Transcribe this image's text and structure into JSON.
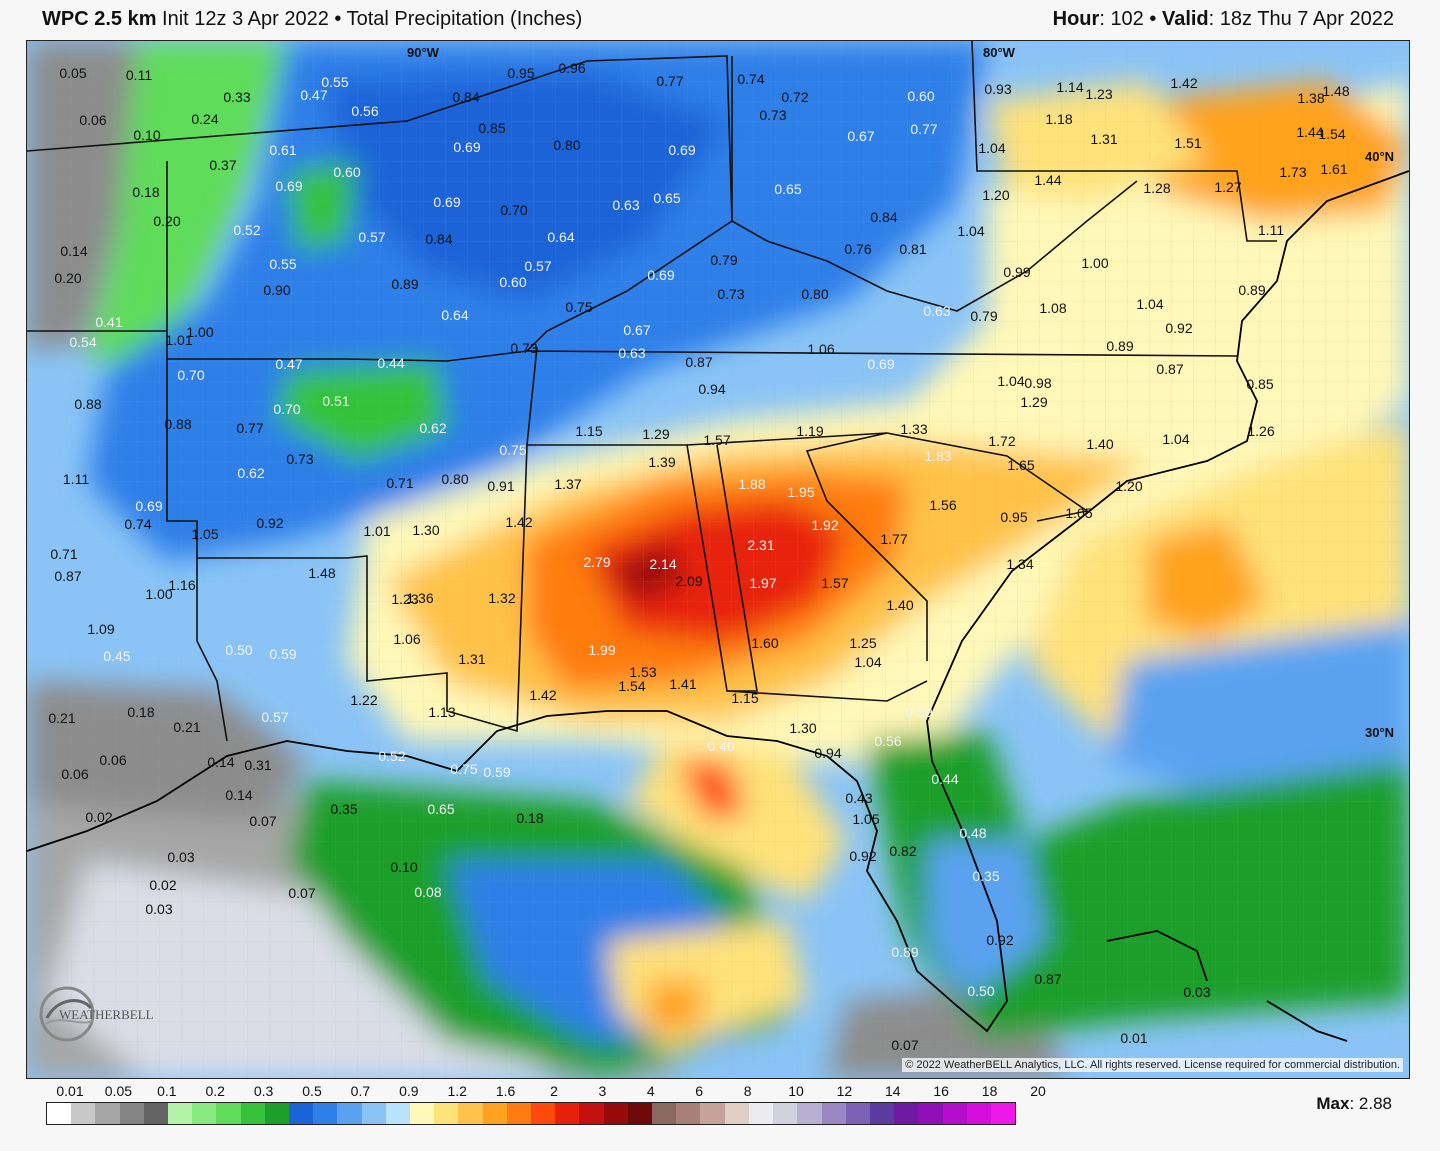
{
  "header": {
    "model": "WPC 2.5 km",
    "init": "Init 12z 3 Apr 2022",
    "field": "Total Precipitation (Inches)",
    "hour_label": "Hour",
    "hour_value": "102",
    "valid_label": "Valid",
    "valid_value": "18z Thu 7 Apr 2022"
  },
  "map_labels": {
    "lon_90": "90°W",
    "lon_80": "80°W",
    "lat_40": "40°N",
    "lat_30": "30°N"
  },
  "copyright": "© 2022 WeatherBELL Analytics, LLC. All rights reserved. License required for commercial distribution.",
  "logo_text": "WEATHERBELL",
  "legend": {
    "ticks": [
      "0.01",
      "0.05",
      "0.1",
      "0.2",
      "0.3",
      "0.5",
      "0.7",
      "0.9",
      "1.2",
      "1.6",
      "2",
      "3",
      "4",
      "6",
      "8",
      "10",
      "12",
      "14",
      "16",
      "18",
      "20"
    ],
    "colors": [
      "#ffffff",
      "#c8c8c8",
      "#a6a6a6",
      "#858585",
      "#646464",
      "#b2f3a7",
      "#88ea7e",
      "#5fdc5a",
      "#36c23b",
      "#1e9f2a",
      "#1b64d8",
      "#2f7fe8",
      "#5aa2f0",
      "#8ac4f6",
      "#b8e3fa",
      "#fff8b8",
      "#ffe27a",
      "#ffc24a",
      "#ffa21f",
      "#ff7b10",
      "#ff4a0c",
      "#e7200b",
      "#c4100e",
      "#98090a",
      "#6e0a0a",
      "#8a6a60",
      "#a88078",
      "#c7a29a",
      "#e1cfc6",
      "#ececf0",
      "#d2d2de",
      "#b8b0d2",
      "#9a88c4",
      "#7b62b6",
      "#5b3c9e",
      "#6e1aa0",
      "#9010b8",
      "#b40ccc",
      "#d40cdc",
      "#ee18e8"
    ]
  },
  "max_label": "Max",
  "max_value": "2.88",
  "values": [
    [
      "0.05",
      72,
      72,
      0
    ],
    [
      "0.11",
      138,
      74,
      0
    ],
    [
      "0.06",
      92,
      119,
      0
    ],
    [
      "0.10",
      146,
      134,
      0
    ],
    [
      "0.33",
      236,
      96,
      0
    ],
    [
      "0.24",
      204,
      118,
      0
    ],
    [
      "0.55",
      334,
      81,
      1
    ],
    [
      "0.47",
      313,
      94,
      1
    ],
    [
      "0.56",
      364,
      110,
      1
    ],
    [
      "0.37",
      222,
      164,
      0
    ],
    [
      "0.61",
      282,
      149,
      1
    ],
    [
      "0.60",
      346,
      171,
      1
    ],
    [
      "0.18",
      145,
      191,
      0
    ],
    [
      "0.69",
      288,
      185,
      1
    ],
    [
      "0.20",
      166,
      220,
      0
    ],
    [
      "0.52",
      246,
      229,
      1
    ],
    [
      "0.57",
      371,
      236,
      1
    ],
    [
      "0.14",
      73,
      250,
      0
    ],
    [
      "0.55",
      282,
      263,
      1
    ],
    [
      "0.20",
      67,
      277,
      0
    ],
    [
      "0.90",
      276,
      289,
      0
    ],
    [
      "0.89",
      404,
      283,
      0
    ],
    [
      "0.41",
      108,
      321,
      1
    ],
    [
      "0.54",
      82,
      341,
      1
    ],
    [
      "1.01",
      178,
      339,
      0
    ],
    [
      "1.00",
      199,
      331,
      0
    ],
    [
      "0.70",
      190,
      374,
      1
    ],
    [
      "0.47",
      288,
      363,
      1
    ],
    [
      "0.44",
      390,
      362,
      1
    ],
    [
      "0.88",
      87,
      403,
      0
    ],
    [
      "0.70",
      286,
      408,
      1
    ],
    [
      "0.51",
      335,
      400,
      1
    ],
    [
      "0.88",
      177,
      423,
      0
    ],
    [
      "0.77",
      249,
      427,
      0
    ],
    [
      "0.73",
      299,
      458,
      0
    ],
    [
      "0.62",
      250,
      472,
      1
    ],
    [
      "1.11",
      75,
      478,
      0
    ],
    [
      "0.69",
      148,
      505,
      1
    ],
    [
      "0.74",
      137,
      523,
      0
    ],
    [
      "0.92",
      269,
      522,
      0
    ],
    [
      "0.71",
      63,
      553,
      0
    ],
    [
      "0.87",
      67,
      575,
      0
    ],
    [
      "1.00",
      158,
      593,
      0
    ],
    [
      "1.16",
      181,
      584,
      0
    ],
    [
      "1.09",
      100,
      628,
      0
    ],
    [
      "0.45",
      116,
      655,
      1
    ],
    [
      "0.50",
      238,
      649,
      1
    ],
    [
      "0.59",
      282,
      653,
      1
    ],
    [
      "0.21",
      61,
      717,
      0
    ],
    [
      "0.18",
      140,
      711,
      0
    ],
    [
      "0.21",
      186,
      726,
      0
    ],
    [
      "0.57",
      274,
      716,
      1
    ],
    [
      "0.06",
      112,
      759,
      0
    ],
    [
      "0.06",
      74,
      773,
      0
    ],
    [
      "0.14",
      220,
      761,
      0
    ],
    [
      "0.31",
      257,
      764,
      0
    ],
    [
      "0.14",
      238,
      794,
      0
    ],
    [
      "0.07",
      262,
      820,
      0
    ],
    [
      "0.35",
      343,
      808,
      0
    ],
    [
      "0.02",
      98,
      816,
      0
    ],
    [
      "0.03",
      180,
      856,
      0
    ],
    [
      "0.02",
      162,
      884,
      0
    ],
    [
      "0.03",
      158,
      908,
      0
    ],
    [
      "0.07",
      301,
      892,
      0
    ],
    [
      "0.10",
      403,
      866,
      0
    ],
    [
      "0.08",
      427,
      891,
      1
    ],
    [
      "0.95",
      520,
      72,
      0
    ],
    [
      "0.96",
      571,
      67,
      0
    ],
    [
      "0.84",
      465,
      96,
      0
    ],
    [
      "0.85",
      491,
      127,
      0
    ],
    [
      "0.69",
      466,
      146,
      1
    ],
    [
      "0.80",
      566,
      144,
      0
    ],
    [
      "0.77",
      669,
      80,
      0
    ],
    [
      "0.74",
      750,
      78,
      0
    ],
    [
      "0.72",
      794,
      96,
      0
    ],
    [
      "0.73",
      772,
      114,
      0
    ],
    [
      "0.60",
      920,
      95,
      1
    ],
    [
      "0.77",
      923,
      128,
      1
    ],
    [
      "0.67",
      860,
      135,
      1
    ],
    [
      "0.69",
      681,
      149,
      1
    ],
    [
      "0.69",
      446,
      201,
      1
    ],
    [
      "0.70",
      513,
      209,
      0
    ],
    [
      "0.63",
      625,
      204,
      1
    ],
    [
      "0.65",
      666,
      197,
      1
    ],
    [
      "0.65",
      787,
      188,
      1
    ],
    [
      "0.84",
      438,
      238,
      0
    ],
    [
      "0.64",
      560,
      236,
      1
    ],
    [
      "0.57",
      537,
      265,
      1
    ],
    [
      "0.60",
      512,
      281,
      1
    ],
    [
      "0.69",
      660,
      274,
      1
    ],
    [
      "0.79",
      723,
      259,
      0
    ],
    [
      "0.73",
      730,
      293,
      0
    ],
    [
      "0.80",
      814,
      293,
      0
    ],
    [
      "0.84",
      883,
      216,
      0
    ],
    [
      "0.76",
      857,
      248,
      0
    ],
    [
      "0.81",
      912,
      248,
      0
    ],
    [
      "0.75",
      578,
      306,
      0
    ],
    [
      "0.64",
      454,
      314,
      1
    ],
    [
      "0.67",
      636,
      329,
      1
    ],
    [
      "0.73",
      523,
      347,
      0
    ],
    [
      "0.63",
      631,
      352,
      1
    ],
    [
      "0.87",
      698,
      361,
      0
    ],
    [
      "0.94",
      711,
      388,
      0
    ],
    [
      "1.06",
      820,
      348,
      0
    ],
    [
      "0.69",
      880,
      363,
      1
    ],
    [
      "0.62",
      432,
      427,
      1
    ],
    [
      "0.75",
      512,
      449,
      1
    ],
    [
      "0.71",
      399,
      482,
      0
    ],
    [
      "0.80",
      454,
      478,
      0
    ],
    [
      "0.91",
      500,
      485,
      0
    ],
    [
      "1.15",
      588,
      430,
      0
    ],
    [
      "1.29",
      655,
      433,
      0
    ],
    [
      "1.57",
      716,
      439,
      0
    ],
    [
      "1.19",
      809,
      430,
      0
    ],
    [
      "1.33",
      913,
      428,
      0
    ],
    [
      "1.37",
      567,
      483,
      0
    ],
    [
      "1.39",
      661,
      461,
      0
    ],
    [
      "1.88",
      751,
      483,
      1
    ],
    [
      "1.95",
      800,
      491,
      1
    ],
    [
      "1.83",
      937,
      455,
      1
    ],
    [
      "1.42",
      518,
      521,
      0
    ],
    [
      "1.30",
      425,
      529,
      0
    ],
    [
      "1.01",
      376,
      530,
      0
    ],
    [
      "1.05",
      204,
      533,
      0
    ],
    [
      "1.48",
      321,
      572,
      0
    ],
    [
      "2.79",
      596,
      561,
      1
    ],
    [
      "2.14",
      662,
      563,
      1
    ],
    [
      "2.31",
      760,
      544,
      1
    ],
    [
      "1.92",
      824,
      524,
      1
    ],
    [
      "1.56",
      942,
      504,
      0
    ],
    [
      "1.77",
      893,
      538,
      0
    ],
    [
      "2.09",
      688,
      580,
      0
    ],
    [
      "1.97",
      762,
      582,
      1
    ],
    [
      "1.57",
      834,
      582,
      0
    ],
    [
      "1.23",
      404,
      598,
      0
    ],
    [
      "1.36",
      419,
      597,
      0
    ],
    [
      "1.32",
      501,
      597,
      0
    ],
    [
      "1.40",
      899,
      604,
      0
    ],
    [
      "1.06",
      406,
      638,
      0
    ],
    [
      "1.60",
      764,
      642,
      0
    ],
    [
      "1.25",
      862,
      642,
      0
    ],
    [
      "1.31",
      471,
      658,
      0
    ],
    [
      "1.99",
      601,
      649,
      1
    ],
    [
      "1.04",
      867,
      661,
      0
    ],
    [
      "1.53",
      642,
      671,
      0
    ],
    [
      "1.54",
      631,
      685,
      0
    ],
    [
      "1.41",
      682,
      683,
      0
    ],
    [
      "1.22",
      363,
      699,
      0
    ],
    [
      "1.13",
      441,
      711,
      0
    ],
    [
      "1.42",
      542,
      694,
      0
    ],
    [
      "1.15",
      744,
      697,
      0
    ],
    [
      "1.30",
      802,
      727,
      0
    ],
    [
      "0.94",
      827,
      752,
      0
    ],
    [
      "0.59",
      918,
      711,
      1
    ],
    [
      "0.56",
      887,
      740,
      1
    ],
    [
      "0.52",
      391,
      755,
      1
    ],
    [
      "0.75",
      463,
      768,
      1
    ],
    [
      "0.59",
      496,
      771,
      1
    ],
    [
      "0.65",
      440,
      808,
      1
    ],
    [
      "0.18",
      529,
      817,
      0
    ],
    [
      "0.40",
      720,
      745,
      1
    ],
    [
      "0.43",
      858,
      797,
      0
    ],
    [
      "1.05",
      865,
      818,
      0
    ],
    [
      "0.44",
      944,
      778,
      1
    ],
    [
      "0.82",
      902,
      850,
      0
    ],
    [
      "0.92",
      862,
      855,
      0
    ],
    [
      "0.48",
      972,
      832,
      1
    ],
    [
      "0.35",
      985,
      875,
      1
    ],
    [
      "0.89",
      904,
      951,
      1
    ],
    [
      "0.92",
      999,
      939,
      0
    ],
    [
      "0.87",
      1047,
      978,
      0
    ],
    [
      "0.50",
      980,
      990,
      1
    ],
    [
      "0.03",
      1196,
      991,
      0
    ],
    [
      "0.01",
      1133,
      1037,
      0
    ],
    [
      "0.07",
      904,
      1044,
      0
    ],
    [
      "0.93",
      997,
      88,
      0
    ],
    [
      "1.14",
      1069,
      86,
      0
    ],
    [
      "1.23",
      1098,
      93,
      0
    ],
    [
      "1.42",
      1183,
      82,
      0
    ],
    [
      "1.38",
      1310,
      97,
      0
    ],
    [
      "1.48",
      1335,
      90,
      0
    ],
    [
      "1.18",
      1058,
      118,
      0
    ],
    [
      "1.31",
      1103,
      138,
      0
    ],
    [
      "1.51",
      1187,
      142,
      0
    ],
    [
      "1.44",
      1309,
      131,
      0
    ],
    [
      "1.54",
      1331,
      133,
      0
    ],
    [
      "1.04",
      991,
      147,
      0
    ],
    [
      "1.73",
      1292,
      171,
      0
    ],
    [
      "1.61",
      1333,
      168,
      0
    ],
    [
      "1.44",
      1047,
      179,
      0
    ],
    [
      "1.28",
      1156,
      187,
      0
    ],
    [
      "1.27",
      1227,
      186,
      0
    ],
    [
      "1.20",
      995,
      194,
      0
    ],
    [
      "1.04",
      970,
      230,
      0
    ],
    [
      "1.11",
      1270,
      229,
      0
    ],
    [
      "0.99",
      1016,
      271,
      0
    ],
    [
      "1.00",
      1094,
      262,
      0
    ],
    [
      "0.89",
      1251,
      289,
      0
    ],
    [
      "1.08",
      1052,
      307,
      0
    ],
    [
      "1.04",
      1149,
      303,
      0
    ],
    [
      "0.92",
      1178,
      327,
      0
    ],
    [
      "0.79",
      983,
      315,
      0
    ],
    [
      "0.63",
      936,
      310,
      1
    ],
    [
      "0.89",
      1119,
      345,
      0
    ],
    [
      "0.87",
      1169,
      368,
      0
    ],
    [
      "0.85",
      1259,
      383,
      0
    ],
    [
      "1.04",
      1010,
      380,
      0
    ],
    [
      "0.98",
      1037,
      382,
      0
    ],
    [
      "1.29",
      1033,
      401,
      0
    ],
    [
      "1.26",
      1260,
      430,
      0
    ],
    [
      "1.72",
      1001,
      440,
      0
    ],
    [
      "1.40",
      1099,
      443,
      0
    ],
    [
      "1.04",
      1175,
      438,
      0
    ],
    [
      "1.65",
      1020,
      464,
      0
    ],
    [
      "1.20",
      1128,
      485,
      0
    ],
    [
      "0.95",
      1013,
      516,
      0
    ],
    [
      "1.05",
      1078,
      512,
      0
    ],
    [
      "1.34",
      1019,
      563,
      0
    ]
  ]
}
